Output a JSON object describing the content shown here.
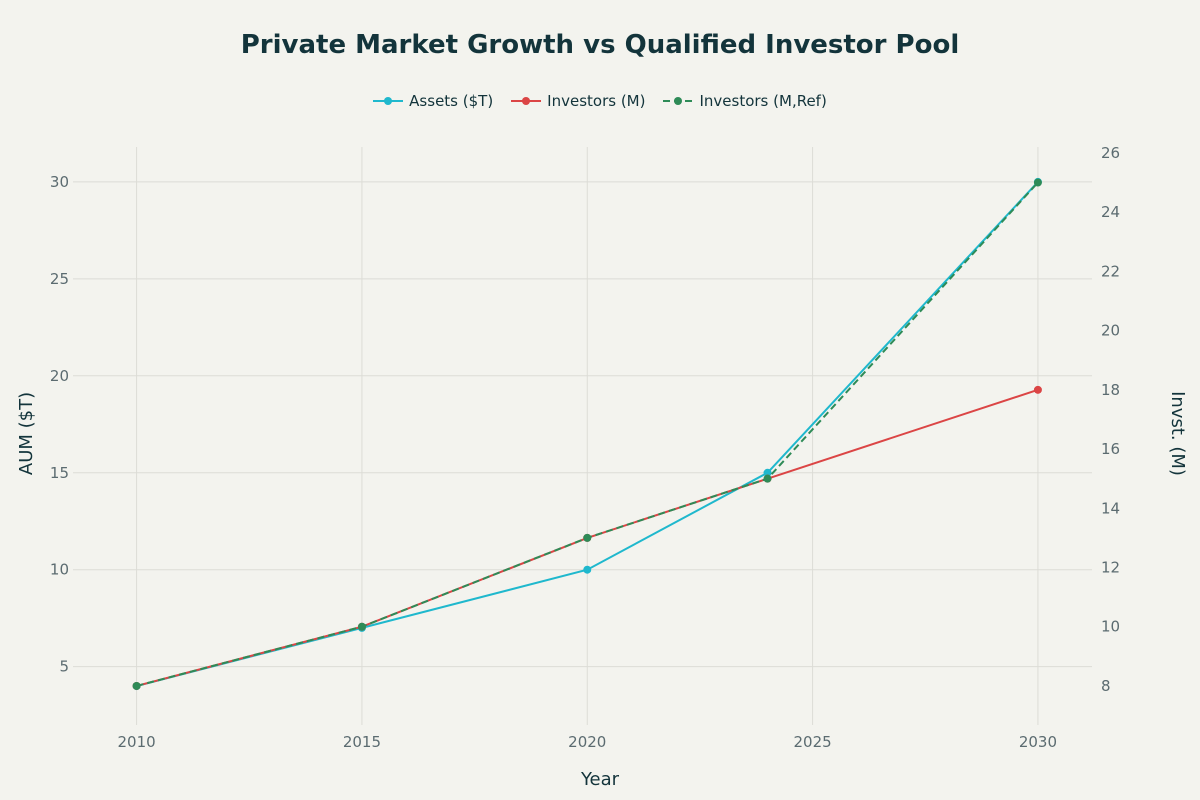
{
  "chart_data": {
    "type": "line",
    "title": "Private Market Growth vs Qualified Investor Pool",
    "xlabel": "Year",
    "ylabel": "AUM ($T)",
    "y2label": "Invst. (M)",
    "x": [
      2010,
      2015,
      2020,
      2024,
      2030
    ],
    "xticks": [
      2010,
      2015,
      2020,
      2025,
      2030
    ],
    "xlim": [
      2008.7,
      2031.2
    ],
    "ylim": [
      2.25,
      31.8
    ],
    "yticks": [
      5,
      10,
      15,
      20,
      25,
      30
    ],
    "y2lim": [
      6.85,
      26.2
    ],
    "y2ticks": [
      8,
      10,
      12,
      14,
      16,
      18,
      20,
      22,
      24,
      26
    ],
    "grid": true,
    "legend_position": "top-center",
    "series": [
      {
        "name": "Assets ($T)",
        "axis": "left",
        "color": "#1FB8CD",
        "dash": false,
        "values": [
          4,
          7,
          10,
          15,
          30
        ]
      },
      {
        "name": "Investors (M)",
        "axis": "right",
        "color": "#DB4545",
        "dash": false,
        "values": [
          8,
          10,
          13,
          15,
          18
        ]
      },
      {
        "name": "Investors (M,Ref)",
        "axis": "right",
        "color": "#2E8B57",
        "dash": true,
        "values": [
          8,
          10,
          13,
          15,
          25
        ]
      }
    ]
  }
}
